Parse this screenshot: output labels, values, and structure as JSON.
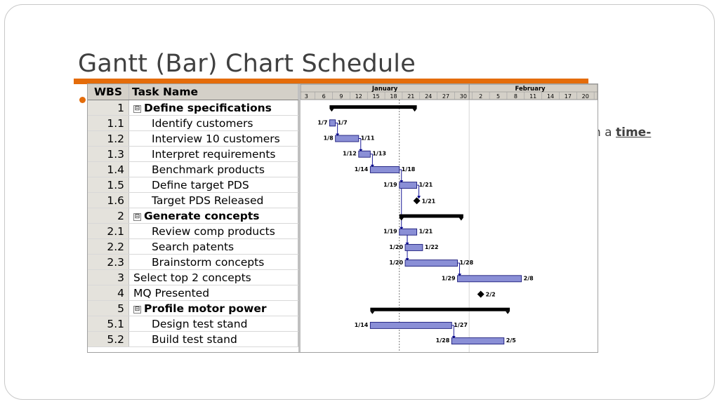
{
  "slide": {
    "title": "Gantt (Bar) Chart Schedule",
    "partial_text_prefix": "n a ",
    "partial_text_link": "time-"
  },
  "table": {
    "headers": {
      "wbs": "WBS",
      "task": "Task Name"
    },
    "rows": [
      {
        "wbs": "1",
        "name": "Define specifications",
        "summary": true,
        "collapse": "⊟"
      },
      {
        "wbs": "1.1",
        "name": "Identify customers",
        "summary": false,
        "collapse": ""
      },
      {
        "wbs": "1.2",
        "name": "Interview 10 customers",
        "summary": false,
        "collapse": ""
      },
      {
        "wbs": "1.3",
        "name": "Interpret requirements",
        "summary": false,
        "collapse": ""
      },
      {
        "wbs": "1.4",
        "name": "Benchmark products",
        "summary": false,
        "collapse": ""
      },
      {
        "wbs": "1.5",
        "name": "Define target PDS",
        "summary": false,
        "collapse": ""
      },
      {
        "wbs": "1.6",
        "name": "Target PDS Released",
        "summary": false,
        "collapse": ""
      },
      {
        "wbs": "2",
        "name": "Generate concepts",
        "summary": true,
        "collapse": "⊟"
      },
      {
        "wbs": "2.1",
        "name": "Review comp products",
        "summary": false,
        "collapse": ""
      },
      {
        "wbs": "2.2",
        "name": "Search patents",
        "summary": false,
        "collapse": ""
      },
      {
        "wbs": "2.3",
        "name": "Brainstorm concepts",
        "summary": false,
        "collapse": ""
      },
      {
        "wbs": "3",
        "name": "Select top 2 concepts",
        "summary": false,
        "collapse": "",
        "top": true
      },
      {
        "wbs": "4",
        "name": "MQ Presented",
        "summary": false,
        "collapse": "",
        "top": true
      },
      {
        "wbs": "5",
        "name": "Profile motor power",
        "summary": true,
        "collapse": "⊟"
      },
      {
        "wbs": "5.1",
        "name": "Design test stand",
        "summary": false,
        "collapse": ""
      },
      {
        "wbs": "5.2",
        "name": "Build test stand",
        "summary": false,
        "collapse": ""
      }
    ]
  },
  "chart_data": {
    "type": "gantt",
    "months": [
      "January",
      "February"
    ],
    "ticks": [
      "3",
      "6",
      "9",
      "12",
      "15",
      "18",
      "21",
      "24",
      "27",
      "30",
      "2",
      "5",
      "8",
      "11",
      "14",
      "17",
      "20"
    ],
    "colors": {
      "bar_fill": "#8a8fd6",
      "bar_border": "#1a1a7a",
      "summary": "#000000",
      "link": "#00008b"
    },
    "tasks": [
      {
        "row": 0,
        "kind": "summary",
        "start": 7,
        "end": 22,
        "start_label": "",
        "end_label": ""
      },
      {
        "row": 1,
        "kind": "task",
        "start": 7,
        "end": 8,
        "start_label": "1/7",
        "end_label": "1/7"
      },
      {
        "row": 2,
        "kind": "task",
        "start": 8,
        "end": 12,
        "start_label": "1/8",
        "end_label": "1/11"
      },
      {
        "row": 3,
        "kind": "task",
        "start": 12,
        "end": 14,
        "start_label": "1/12",
        "end_label": "1/13"
      },
      {
        "row": 4,
        "kind": "task",
        "start": 14,
        "end": 19,
        "start_label": "1/14",
        "end_label": "1/18"
      },
      {
        "row": 5,
        "kind": "task",
        "start": 19,
        "end": 22,
        "start_label": "1/19",
        "end_label": "1/21"
      },
      {
        "row": 6,
        "kind": "milestone",
        "start": 22,
        "end": 22,
        "start_label": "",
        "end_label": "1/21"
      },
      {
        "row": 7,
        "kind": "summary",
        "start": 19,
        "end": 30,
        "start_label": "",
        "end_label": ""
      },
      {
        "row": 8,
        "kind": "task",
        "start": 19,
        "end": 22,
        "start_label": "1/19",
        "end_label": "1/21"
      },
      {
        "row": 9,
        "kind": "task",
        "start": 20,
        "end": 23,
        "start_label": "1/20",
        "end_label": "1/22"
      },
      {
        "row": 10,
        "kind": "task",
        "start": 20,
        "end": 29,
        "start_label": "1/20",
        "end_label": "1/28"
      },
      {
        "row": 11,
        "kind": "task",
        "start": 29,
        "end": 40,
        "start_label": "1/29",
        "end_label": "2/8"
      },
      {
        "row": 12,
        "kind": "milestone",
        "start": 33,
        "end": 33,
        "start_label": "",
        "end_label": "2/2"
      },
      {
        "row": 13,
        "kind": "summary",
        "start": 14,
        "end": 38,
        "start_label": "",
        "end_label": ""
      },
      {
        "row": 14,
        "kind": "task",
        "start": 14,
        "end": 28,
        "start_label": "1/14",
        "end_label": "1/27"
      },
      {
        "row": 15,
        "kind": "task",
        "start": 28,
        "end": 37,
        "start_label": "1/28",
        "end_label": "2/5"
      }
    ],
    "links": [
      [
        1,
        2
      ],
      [
        2,
        3
      ],
      [
        3,
        4
      ],
      [
        4,
        5
      ],
      [
        5,
        6
      ],
      [
        5,
        8
      ],
      [
        8,
        9
      ],
      [
        8,
        10
      ],
      [
        10,
        11
      ],
      [
        14,
        15
      ]
    ]
  }
}
